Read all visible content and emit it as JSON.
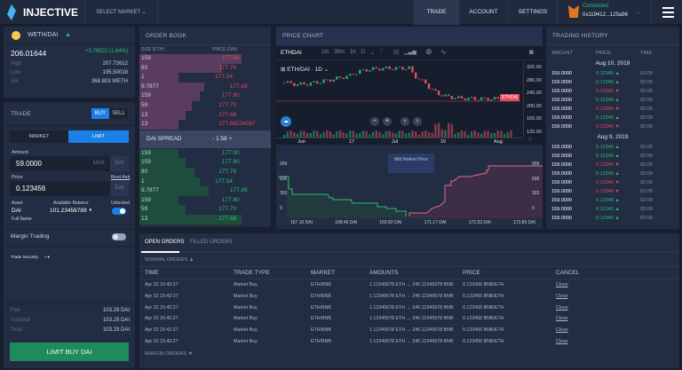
{
  "header": {
    "brand": "INJECTIVE",
    "select_market": "SELECT MARKET",
    "nav": [
      "TRADE",
      "ACCOUNT",
      "SETTINGS"
    ],
    "wallet_status": "Connected",
    "wallet_address": "0x119412...125a96"
  },
  "market": {
    "pair": "WETH/DAI",
    "price": "206.01644",
    "change": "+3.78522 (1.84%)",
    "high_label": "High",
    "high": "207.72612",
    "low_label": "Low",
    "low": "195.50018",
    "vol_label": "Vol",
    "vol": "368.803 WETH"
  },
  "trade": {
    "title": "TRADE",
    "buy": "BUY",
    "sell": "SELL",
    "market_tab": "MARKET",
    "limit_tab": "LIMIT",
    "amount_label": "Amount",
    "amount": "59.0000",
    "max": "MAX",
    "amount_unit": "DAI",
    "price_label": "Price",
    "best_ask": "Best Ask",
    "price": "0.123456",
    "price_unit": "DAI",
    "asset_label": "Asset",
    "asset": "DAI",
    "full_name": "Full Name",
    "balance_label": "Available Balance",
    "balance": "101.23456789",
    "unlocked_label": "Unlocked",
    "unlocked": true,
    "margin_label": "Margin Trading",
    "margin_on": false,
    "security_label": "Trade Security",
    "fee_label": "Fee",
    "fee": "103.29 DAI",
    "subtotal_label": "Subtotal",
    "subtotal": "103.29 DAI",
    "total_label": "Total",
    "total": "103.29 DAI",
    "submit": "LIMIT BUY DAI"
  },
  "orderbook": {
    "title": "ORDER BOOK",
    "col_size": "SIZE (ETH)",
    "col_price": "PRICE (DAI)",
    "asks": [
      {
        "size": "159",
        "price": "177.90",
        "depth": 0.78
      },
      {
        "size": "80",
        "price": "177.76",
        "depth": 0.63
      },
      {
        "size": "1",
        "price": "177.54",
        "depth": 0.3
      },
      {
        "size": "9.7877",
        "price": "177.89",
        "depth": 0.49
      },
      {
        "size": "159",
        "price": "177.80",
        "depth": 0.46
      },
      {
        "size": "59",
        "price": "177.70",
        "depth": 0.4
      },
      {
        "size": "13",
        "price": "177.68",
        "depth": 0.35
      },
      {
        "size": "13",
        "price": "177.68234567",
        "depth": 0.3
      }
    ],
    "spread_label": "DAI SPREAD",
    "spread": "- 1.58 +",
    "bids": [
      {
        "size": "159",
        "price": "177.90",
        "depth": 0.3
      },
      {
        "size": "159",
        "price": "177.90",
        "depth": 0.35
      },
      {
        "size": "80",
        "price": "177.76",
        "depth": 0.42
      },
      {
        "size": "1",
        "price": "177.54",
        "depth": 0.46
      },
      {
        "size": "9.7877",
        "price": "177.89",
        "depth": 0.53
      },
      {
        "size": "159",
        "price": "177.80",
        "depth": 0.3
      },
      {
        "size": "59",
        "price": "177.70",
        "depth": 0.35
      },
      {
        "size": "13",
        "price": "177.68",
        "depth": 0.78
      }
    ]
  },
  "chart": {
    "title": "PRICE CHART",
    "symbol": "ETHDAI",
    "intervals": [
      "1m",
      "30m",
      "1h",
      "D"
    ],
    "active_interval": "D",
    "legend": "ETH/DAI · 1D",
    "price_tag": "ETHDAI",
    "y_ticks": [
      "320.00",
      "280.00",
      "240.00",
      "200.00",
      "160.00",
      "120.00"
    ],
    "x_ticks": [
      "Jun",
      "17",
      "Jul",
      "15",
      "Aug"
    ],
    "depth": {
      "tooltip": "Mid Market Price",
      "y_ticks": [
        "909",
        "606",
        "303",
        "0"
      ],
      "x_ticks": [
        "167.10 DAI",
        "168.46 DAI",
        "169.82 DAI",
        "171.17 DAI",
        "172.53 DAI",
        "173.89 DAI"
      ]
    }
  },
  "history": {
    "title": "TRADING HISTORY",
    "cols": [
      "AMOUNT",
      "PRICE",
      "TIME"
    ],
    "groups": [
      {
        "date": "Aug 10, 2019",
        "rows": [
          {
            "a": "159.0000",
            "p": "0.12345",
            "t": "02:09",
            "up": true
          },
          {
            "a": "159.0000",
            "p": "0.12345",
            "t": "02:09",
            "up": true
          },
          {
            "a": "159.0000",
            "p": "0.12345",
            "t": "02:09",
            "up": false
          },
          {
            "a": "159.0000",
            "p": "0.12345",
            "t": "02:09",
            "up": true
          },
          {
            "a": "159.0000",
            "p": "0.12345",
            "t": "02:09",
            "up": false
          },
          {
            "a": "159.0000",
            "p": "0.12345",
            "t": "02:09",
            "up": true
          },
          {
            "a": "159.0000",
            "p": "0.12345",
            "t": "02:09",
            "up": false
          }
        ]
      },
      {
        "date": "Aug 9, 2019",
        "rows": [
          {
            "a": "159.0000",
            "p": "0.12345",
            "t": "02:09",
            "up": true
          },
          {
            "a": "159.0000",
            "p": "0.12345",
            "t": "02:09",
            "up": true
          },
          {
            "a": "159.0000",
            "p": "0.12345",
            "t": "02:09",
            "up": false
          },
          {
            "a": "159.0000",
            "p": "0.12345",
            "t": "02:09",
            "up": true
          },
          {
            "a": "159.0000",
            "p": "0.12345",
            "t": "02:09",
            "up": false
          },
          {
            "a": "159.0000",
            "p": "0.12345",
            "t": "02:09",
            "up": false
          },
          {
            "a": "159.0000",
            "p": "0.12345",
            "t": "02:09",
            "up": true
          },
          {
            "a": "159.0000",
            "p": "0.12345",
            "t": "02:09",
            "up": true
          },
          {
            "a": "159.0000",
            "p": "0.12345",
            "t": "02:09",
            "up": true
          }
        ]
      }
    ]
  },
  "orders": {
    "tabs": [
      "OPEN ORDERS",
      "FILLED ORDERS"
    ],
    "normal_label": "NORMAL ORDERS",
    "margin_label": "MARGIN ORDERS",
    "cols": [
      "TIME",
      "TRADE TYPE",
      "MARKET",
      "AMOUNTS",
      "PRICE",
      "CANCEL"
    ],
    "rows": [
      {
        "time": "Apr 22 15:42:27",
        "type": "Market Buy",
        "market": "ETH/BNB",
        "amounts": "1.12345678 ETH → 240.12345678 BNB",
        "price": "0.123456 BNB/ETH",
        "cancel": "Close"
      },
      {
        "time": "Apr 22 15:42:27",
        "type": "Market Buy",
        "market": "ETH/BNB",
        "amounts": "1.12345678 ETH → 240.12345678 BNB",
        "price": "0.123456 BNB/ETH",
        "cancel": "Close"
      },
      {
        "time": "Apr 22 15:42:27",
        "type": "Market Buy",
        "market": "ETH/BNB",
        "amounts": "1.12345678 ETH → 240.12345678 BNB",
        "price": "0.123456 BNB/ETH",
        "cancel": "Close"
      },
      {
        "time": "Apr 22 15:42:27",
        "type": "Market Buy",
        "market": "ETH/BNB",
        "amounts": "1.12345678 ETH → 240.12345678 BNB",
        "price": "0.123456 BNB/ETH",
        "cancel": "Close"
      },
      {
        "time": "Apr 22 15:42:27",
        "type": "Market Buy",
        "market": "ETH/BNB",
        "amounts": "1.12345678 ETH → 240.12345678 BNB",
        "price": "0.123456 BNB/ETH",
        "cancel": "Close"
      },
      {
        "time": "Apr 22 15:42:27",
        "type": "Market Buy",
        "market": "ETH/BNB",
        "amounts": "1.12345678 ETH → 240.12345678 BNB",
        "price": "0.123456 BNB/ETH",
        "cancel": "Close"
      }
    ]
  },
  "colors": {
    "accent": "#1a7fe6",
    "up": "#2fbf71",
    "down": "#e8475f",
    "buy_button": "#1f8a5e"
  }
}
